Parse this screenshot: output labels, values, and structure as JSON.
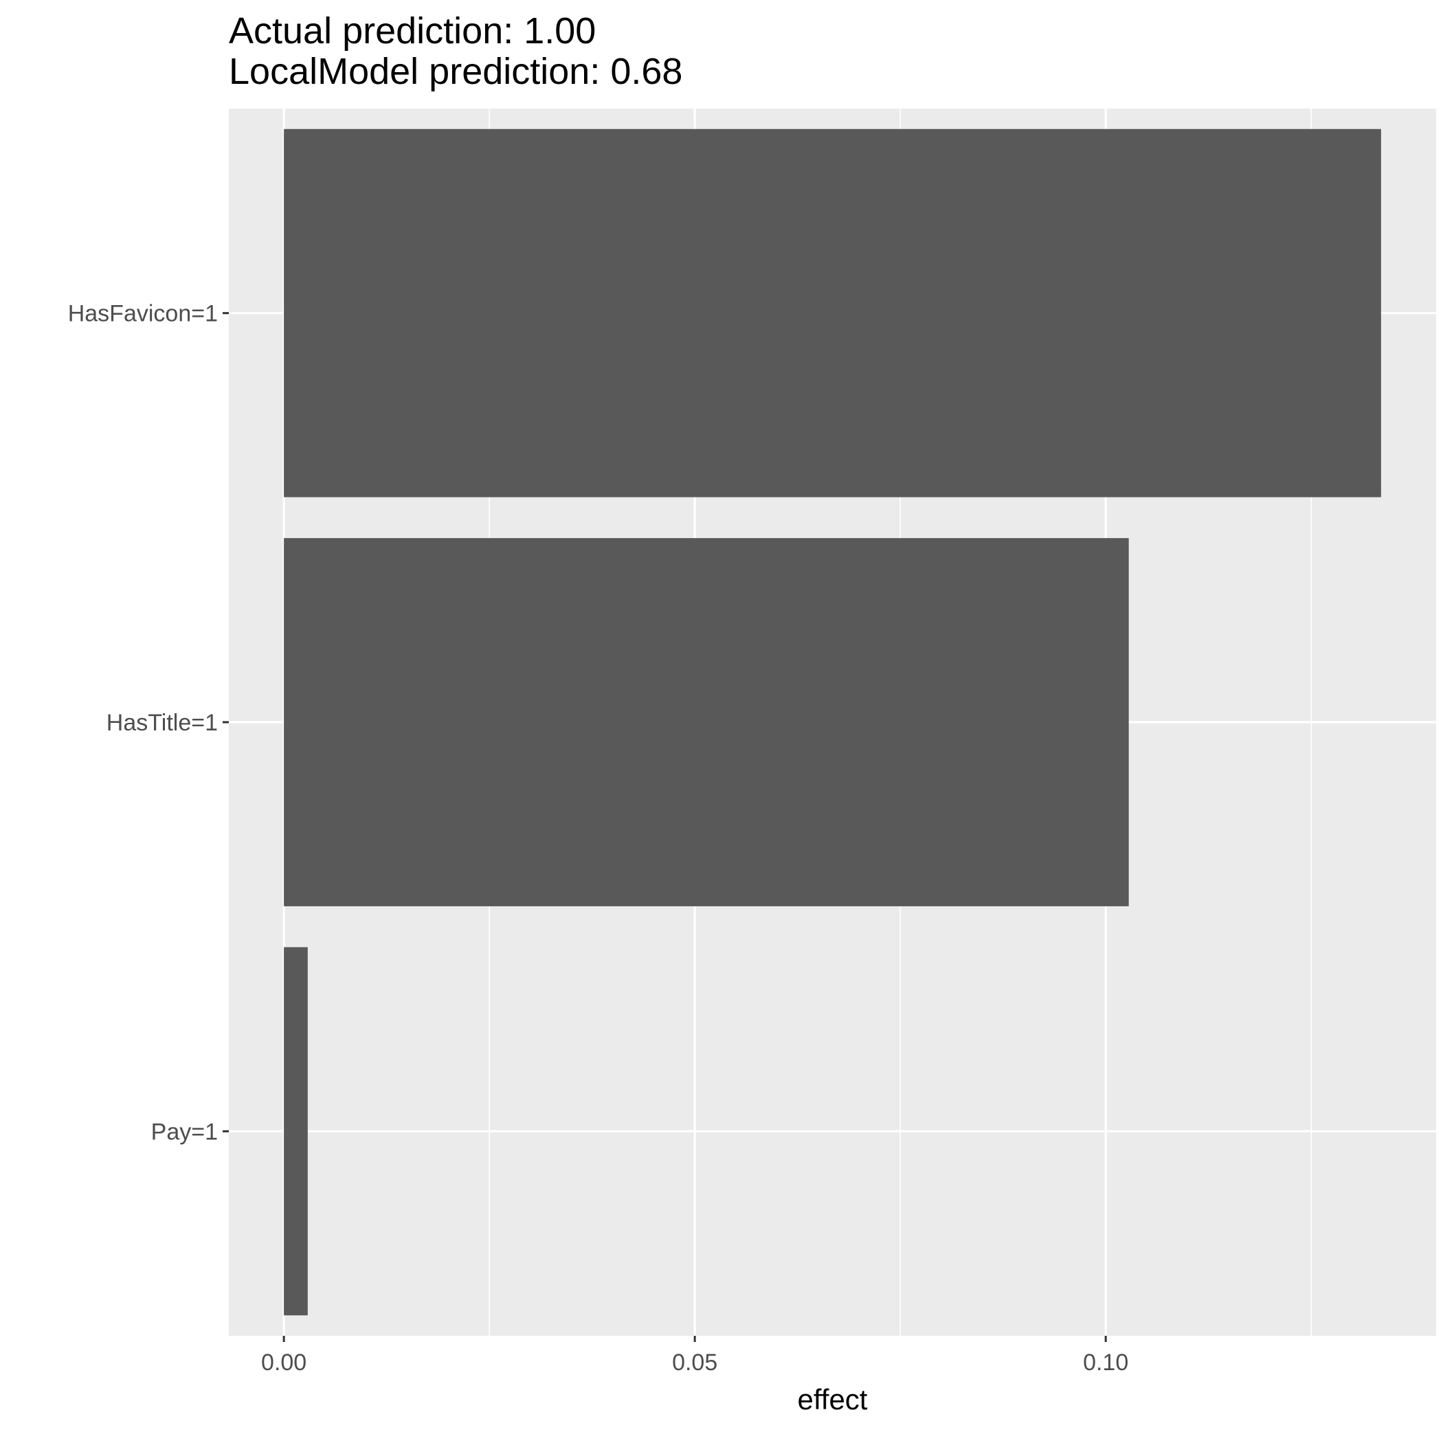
{
  "chart_data": {
    "type": "bar",
    "orientation": "horizontal",
    "title_lines": [
      "Actual prediction: 1.00",
      "LocalModel prediction: 0.68"
    ],
    "xlabel": "effect",
    "ylabel": "",
    "categories": [
      "HasFavicon=1",
      "HasTitle=1",
      "Pay=1"
    ],
    "values": [
      0.1335,
      0.1028,
      0.0029
    ],
    "xlim": [
      -0.0067,
      0.1402
    ],
    "xticks": [
      0.0,
      0.05,
      0.1
    ],
    "xtick_labels": [
      "0.00",
      "0.05",
      "0.10"
    ],
    "grid": true,
    "bar_color": "#595959",
    "panel_color": "#ebebeb",
    "grid_color": "#ffffff"
  }
}
